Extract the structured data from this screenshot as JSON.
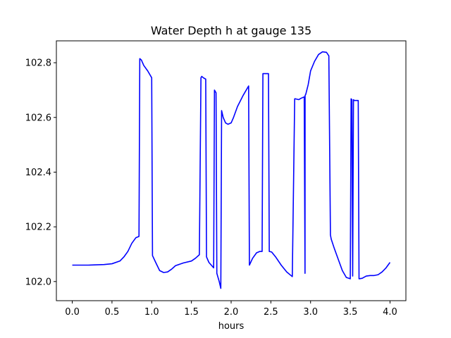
{
  "chart_data": {
    "type": "line",
    "title": "Water Depth h at gauge 135",
    "xlabel": "hours",
    "ylabel": "",
    "xlim": [
      -0.2,
      4.2
    ],
    "ylim": [
      101.93,
      102.88
    ],
    "xticks": [
      0.0,
      0.5,
      1.0,
      1.5,
      2.0,
      2.5,
      3.0,
      3.5,
      4.0
    ],
    "xtick_labels": [
      "0.0",
      "0.5",
      "1.0",
      "1.5",
      "2.0",
      "2.5",
      "3.0",
      "3.5",
      "4.0"
    ],
    "yticks": [
      102.0,
      102.2,
      102.4,
      102.6,
      102.8
    ],
    "ytick_labels": [
      "102.0",
      "102.2",
      "102.4",
      "102.6",
      "102.8"
    ],
    "grid": false,
    "series": [
      {
        "color": "#0000ff",
        "x": [
          0.0,
          0.2,
          0.4,
          0.5,
          0.6,
          0.65,
          0.7,
          0.75,
          0.8,
          0.84,
          0.85,
          0.87,
          0.9,
          0.95,
          1.0,
          1.01,
          1.05,
          1.1,
          1.15,
          1.2,
          1.25,
          1.3,
          1.4,
          1.5,
          1.55,
          1.6,
          1.62,
          1.63,
          1.65,
          1.68,
          1.69,
          1.72,
          1.78,
          1.79,
          1.81,
          1.82,
          1.85,
          1.87,
          1.88,
          1.9,
          1.93,
          1.96,
          2.0,
          2.03,
          2.08,
          2.15,
          2.22,
          2.23,
          2.27,
          2.32,
          2.36,
          2.39,
          2.4,
          2.41,
          2.47,
          2.48,
          2.51,
          2.56,
          2.63,
          2.7,
          2.77,
          2.8,
          2.81,
          2.85,
          2.88,
          2.92,
          2.93,
          2.931,
          2.94,
          2.97,
          3.0,
          3.05,
          3.1,
          3.15,
          3.2,
          3.23,
          3.25,
          3.26,
          3.3,
          3.35,
          3.4,
          3.45,
          3.5,
          3.51,
          3.52,
          3.53,
          3.54,
          3.55,
          3.6,
          3.61,
          3.65,
          3.7,
          3.75,
          3.8,
          3.85,
          3.9,
          3.95,
          4.0
        ],
        "y": [
          102.06,
          102.06,
          102.062,
          102.065,
          102.075,
          102.09,
          102.11,
          102.14,
          102.16,
          102.165,
          102.815,
          102.81,
          102.79,
          102.77,
          102.745,
          102.095,
          102.07,
          102.04,
          102.033,
          102.035,
          102.045,
          102.058,
          102.068,
          102.075,
          102.085,
          102.098,
          102.745,
          102.75,
          102.745,
          102.74,
          102.09,
          102.07,
          102.05,
          102.7,
          102.69,
          102.03,
          102.0,
          101.975,
          102.625,
          102.6,
          102.58,
          102.575,
          102.58,
          102.6,
          102.64,
          102.68,
          102.715,
          102.06,
          102.085,
          102.105,
          102.11,
          102.11,
          102.76,
          102.76,
          102.76,
          102.11,
          102.108,
          102.09,
          102.06,
          102.035,
          102.018,
          102.668,
          102.668,
          102.665,
          102.67,
          102.675,
          102.03,
          102.68,
          102.685,
          102.72,
          102.77,
          102.805,
          102.83,
          102.84,
          102.838,
          102.825,
          102.17,
          102.155,
          102.12,
          102.08,
          102.04,
          102.015,
          102.01,
          102.668,
          102.665,
          102.02,
          102.665,
          102.662,
          102.662,
          102.01,
          102.012,
          102.02,
          102.022,
          102.022,
          102.025,
          102.035,
          102.05,
          102.07
        ]
      }
    ]
  }
}
